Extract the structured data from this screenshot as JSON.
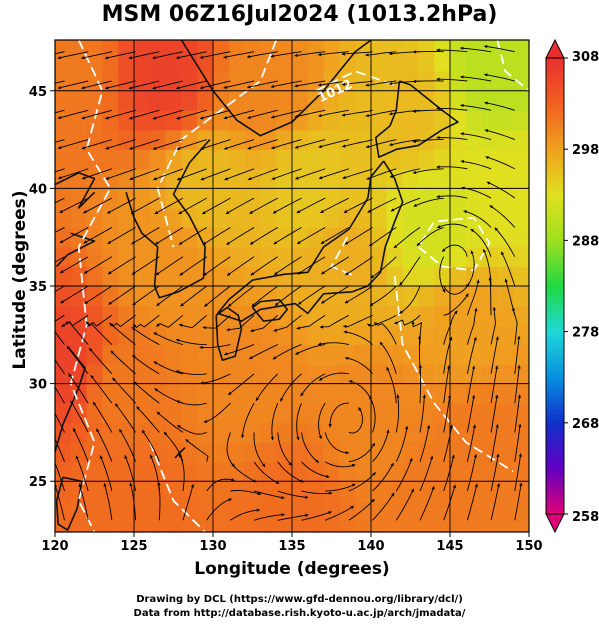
{
  "title": "MSM 06Z16Jul2024 (1013.2hPa)",
  "xlabel": "Longitude (degrees)",
  "ylabel": "Latitude  (degrees)",
  "credit_line1": "Drawing by DCL (https://www.gfd-dennou.org/library/dcl/)",
  "credit_line2": "Data from http://database.rish.kyoto-u.ac.jp/arch/jmadata/",
  "chart_data": {
    "type": "heatmap",
    "title": "MSM 06Z16Jul2024 (1013.2hPa)",
    "xlabel": "Longitude (degrees)",
    "ylabel": "Latitude  (degrees)",
    "xlim": [
      120,
      150
    ],
    "ylim": [
      22.4,
      47.6
    ],
    "x_ticks": [
      120,
      125,
      130,
      135,
      140,
      145,
      150
    ],
    "y_ticks": [
      25,
      30,
      35,
      40,
      45
    ],
    "grid": true,
    "colorbar": {
      "min": 258,
      "max": 308,
      "ticks": [
        308,
        298,
        288,
        278,
        268,
        258
      ],
      "colors": [
        "#e00078",
        "#6000c0",
        "#1030c8",
        "#0890e0",
        "#20d8d8",
        "#20d840",
        "#a0e020",
        "#e0e020",
        "#f0a020",
        "#f06020",
        "#e83030"
      ]
    },
    "contour_labels": [
      "1012"
    ],
    "temperature_regions": [
      {
        "lon": 121,
        "lat": 46,
        "value": 301
      },
      {
        "lon": 127,
        "lat": 46,
        "value": 306
      },
      {
        "lon": 133,
        "lat": 45,
        "value": 300
      },
      {
        "lon": 142,
        "lat": 44,
        "value": 296
      },
      {
        "lon": 148,
        "lat": 46,
        "value": 290
      },
      {
        "lon": 130,
        "lat": 40,
        "value": 296
      },
      {
        "lon": 136,
        "lat": 40,
        "value": 295
      },
      {
        "lon": 144,
        "lat": 38,
        "value": 292
      },
      {
        "lon": 149,
        "lat": 40,
        "value": 293
      },
      {
        "lon": 127,
        "lat": 36,
        "value": 299
      },
      {
        "lon": 138,
        "lat": 36,
        "value": 297
      },
      {
        "lon": 146,
        "lat": 33,
        "value": 298
      },
      {
        "lon": 124,
        "lat": 30,
        "value": 301
      },
      {
        "lon": 132,
        "lat": 30,
        "value": 300
      },
      {
        "lon": 140,
        "lat": 28,
        "value": 300
      },
      {
        "lon": 147,
        "lat": 27,
        "value": 301
      },
      {
        "lon": 125,
        "lat": 24,
        "value": 302
      },
      {
        "lon": 135,
        "lat": 24,
        "value": 302
      },
      {
        "lon": 144,
        "lat": 24,
        "value": 301
      },
      {
        "lon": 120.8,
        "lat": 31,
        "value": 306
      }
    ]
  }
}
